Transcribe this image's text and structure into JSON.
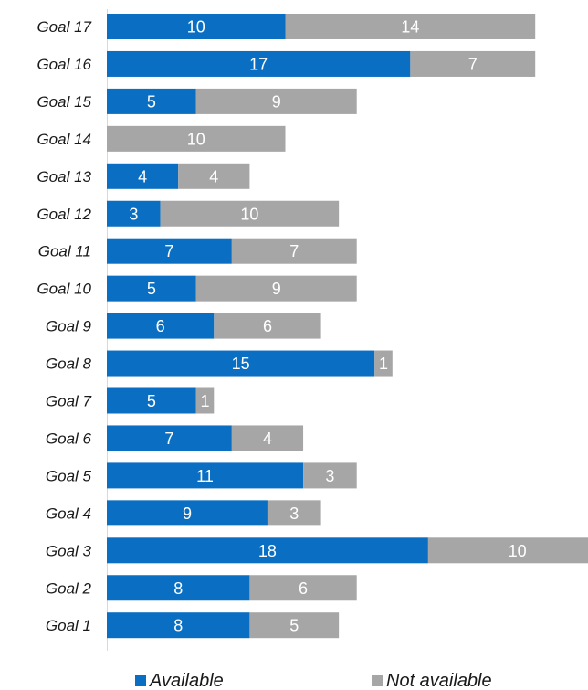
{
  "chart_data": {
    "type": "bar",
    "orientation": "horizontal",
    "stacked": true,
    "categories": [
      "Goal 17",
      "Goal 16",
      "Goal 15",
      "Goal 14",
      "Goal 13",
      "Goal 12",
      "Goal 11",
      "Goal 10",
      "Goal 9",
      "Goal 8",
      "Goal 7",
      "Goal 6",
      "Goal 5",
      "Goal 4",
      "Goal 3",
      "Goal 2",
      "Goal 1"
    ],
    "series": [
      {
        "name": "Available",
        "color": "#0a6fc2",
        "values": [
          10,
          17,
          5,
          0,
          4,
          3,
          7,
          5,
          6,
          15,
          5,
          7,
          11,
          9,
          18,
          8,
          8
        ]
      },
      {
        "name": "Not available",
        "color": "#a6a6a6",
        "values": [
          14,
          7,
          9,
          10,
          4,
          10,
          7,
          9,
          6,
          1,
          1,
          4,
          3,
          3,
          10,
          6,
          5
        ]
      }
    ],
    "title": "",
    "xlabel": "",
    "ylabel": "",
    "xlim": [
      0,
      28
    ],
    "grid": false,
    "legend_position": "bottom"
  }
}
